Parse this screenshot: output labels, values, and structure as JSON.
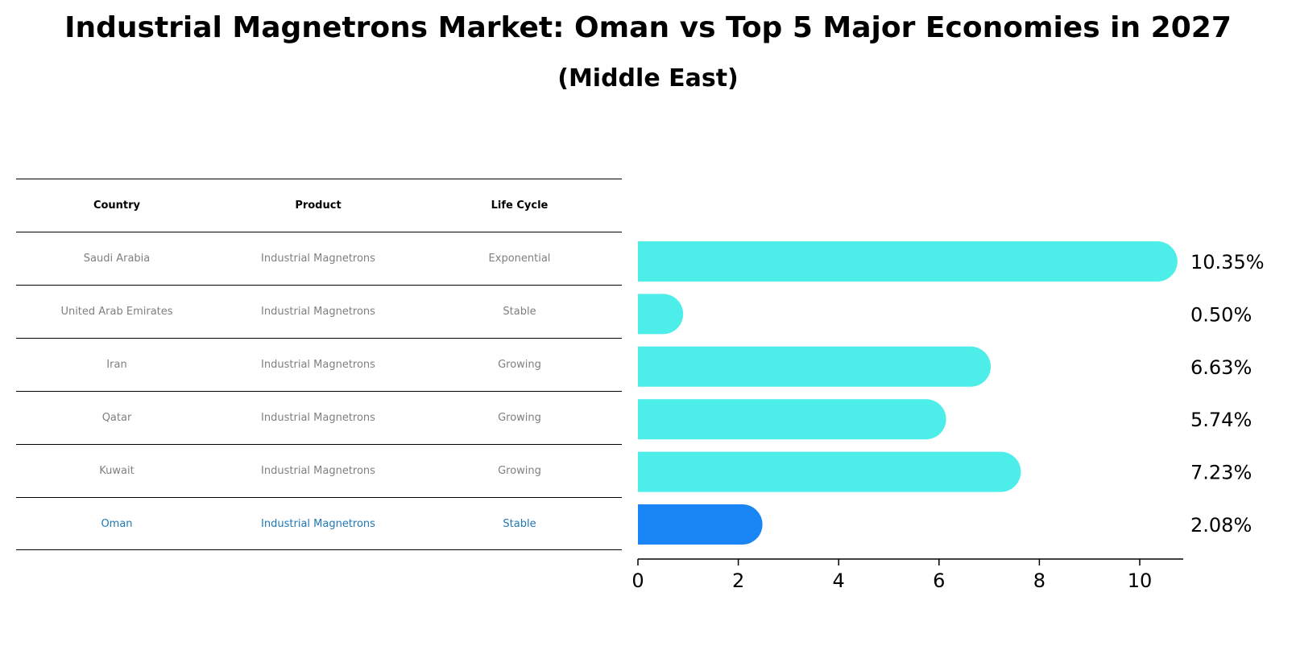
{
  "title": "Industrial Magnetrons Market: Oman vs Top 5 Major Economies in 2027",
  "subtitle": "(Middle East)",
  "table": {
    "headers": [
      "Country",
      "Product",
      "Life Cycle"
    ],
    "rows": [
      [
        "Saudi Arabia",
        "Industrial Magnetrons",
        "Exponential"
      ],
      [
        "United Arab Emirates",
        "Industrial Magnetrons",
        "Stable"
      ],
      [
        "Iran",
        "Industrial Magnetrons",
        "Growing"
      ],
      [
        "Qatar",
        "Industrial Magnetrons",
        "Growing"
      ],
      [
        "Kuwait",
        "Industrial Magnetrons",
        "Growing"
      ],
      [
        "Oman",
        "Industrial Magnetrons",
        "Stable"
      ]
    ]
  },
  "colors": {
    "bar": "#4dedea",
    "highlight_bar": "#1a85f5",
    "highlight_text": "#1f77b4"
  },
  "chart_data": {
    "type": "bar",
    "orientation": "horizontal",
    "categories": [
      "Saudi Arabia",
      "United Arab Emirates",
      "Iran",
      "Qatar",
      "Kuwait",
      "Oman"
    ],
    "values": [
      10.35,
      0.5,
      6.63,
      5.74,
      7.23,
      2.08
    ],
    "value_labels": [
      "10.35%",
      "0.50%",
      "6.63%",
      "5.74%",
      "7.23%",
      "2.08%"
    ],
    "highlight": "Oman",
    "xlim": [
      0,
      10.87
    ],
    "xticks": [
      "0",
      "2",
      "4",
      "6",
      "8",
      "10"
    ],
    "grid": false
  }
}
